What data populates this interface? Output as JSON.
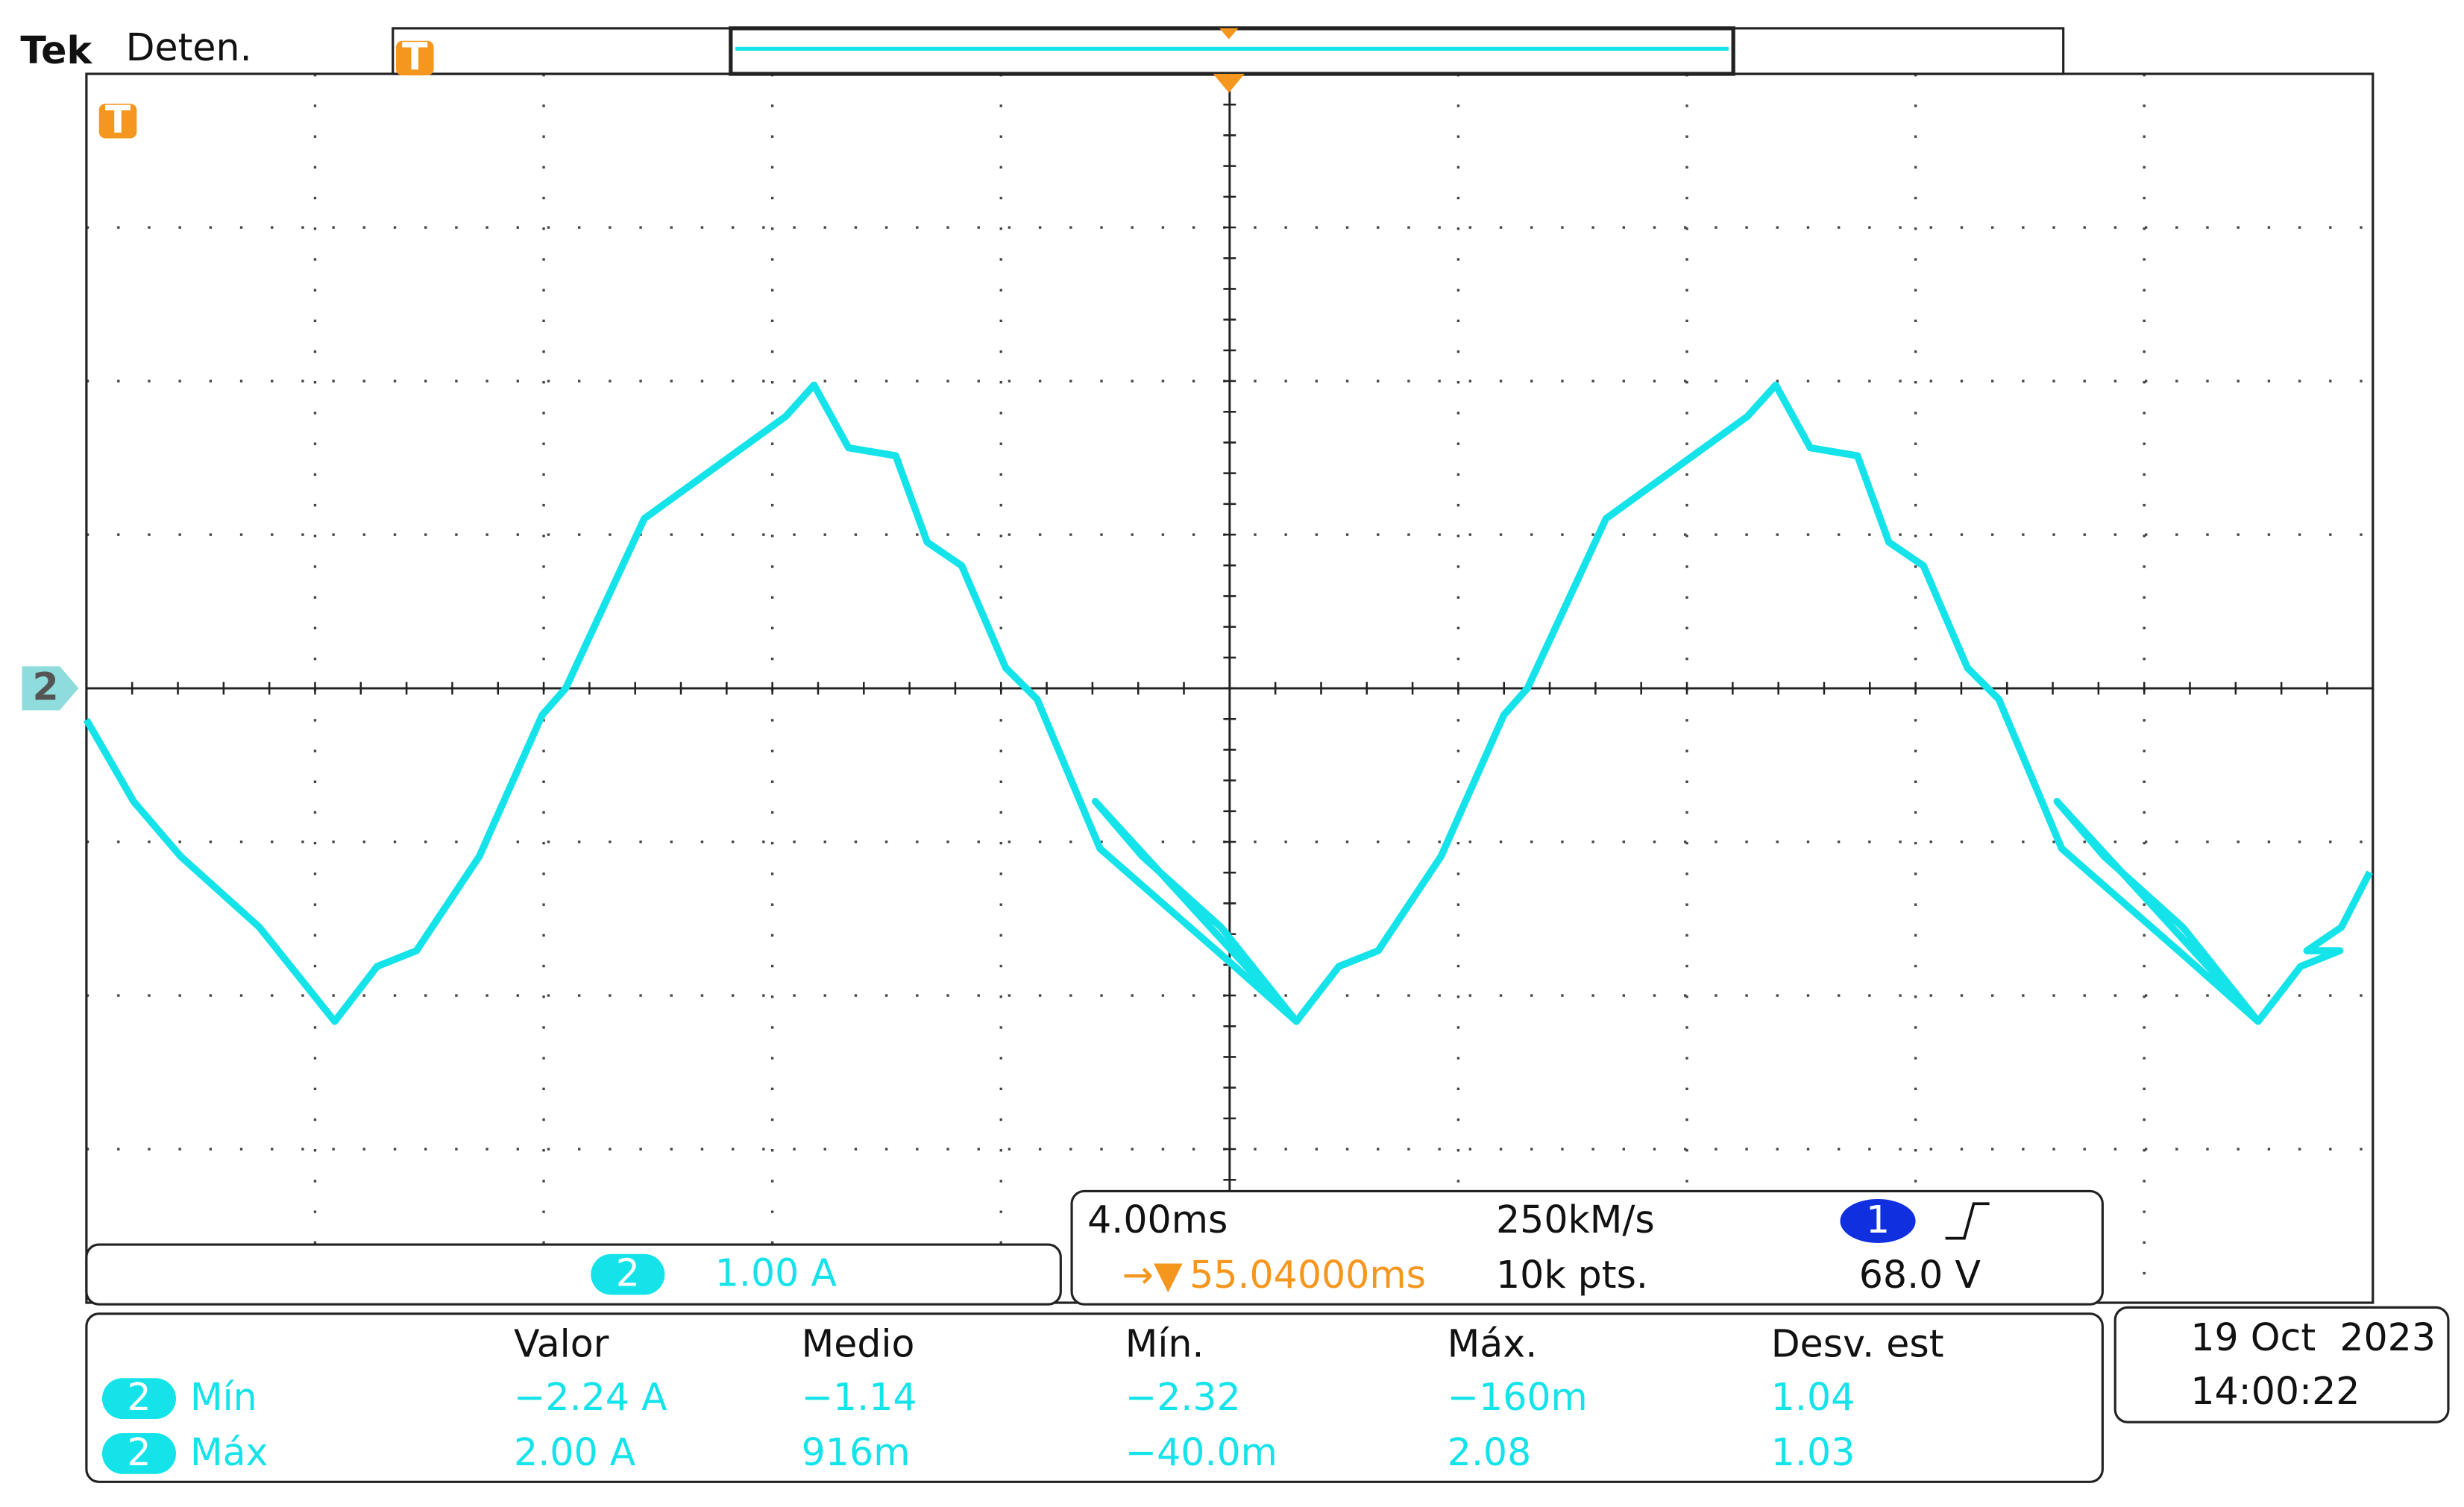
{
  "header": {
    "brand": "Tek",
    "status": "Deten."
  },
  "markers": {
    "trigger": "T",
    "channel": "2",
    "trigger_arrow": "→▼"
  },
  "channel_info": {
    "channel": "2",
    "scale": "1.00 A"
  },
  "acquisition": {
    "timebase": "4.00ms",
    "trigger_position": "55.04000ms",
    "sample_rate": "250kM/s",
    "record_length": "10k pts.",
    "trigger_channel": "1",
    "trigger_level": "68.0 V"
  },
  "measurements": {
    "headers": [
      "Valor",
      "Medio",
      "Mín.",
      "Máx.",
      "Desv. est"
    ],
    "rows": [
      {
        "channel": "2",
        "name": "Mín",
        "cells": [
          "−2.24 A",
          "−1.14",
          "−2.32",
          "−160m",
          "1.04"
        ]
      },
      {
        "channel": "2",
        "name": "Máx",
        "cells": [
          "2.00 A",
          "916m",
          "−40.0m",
          "2.08",
          "1.03"
        ]
      }
    ]
  },
  "datetime": {
    "date": "19 Oct  2023",
    "time": "14:00:22"
  }
}
